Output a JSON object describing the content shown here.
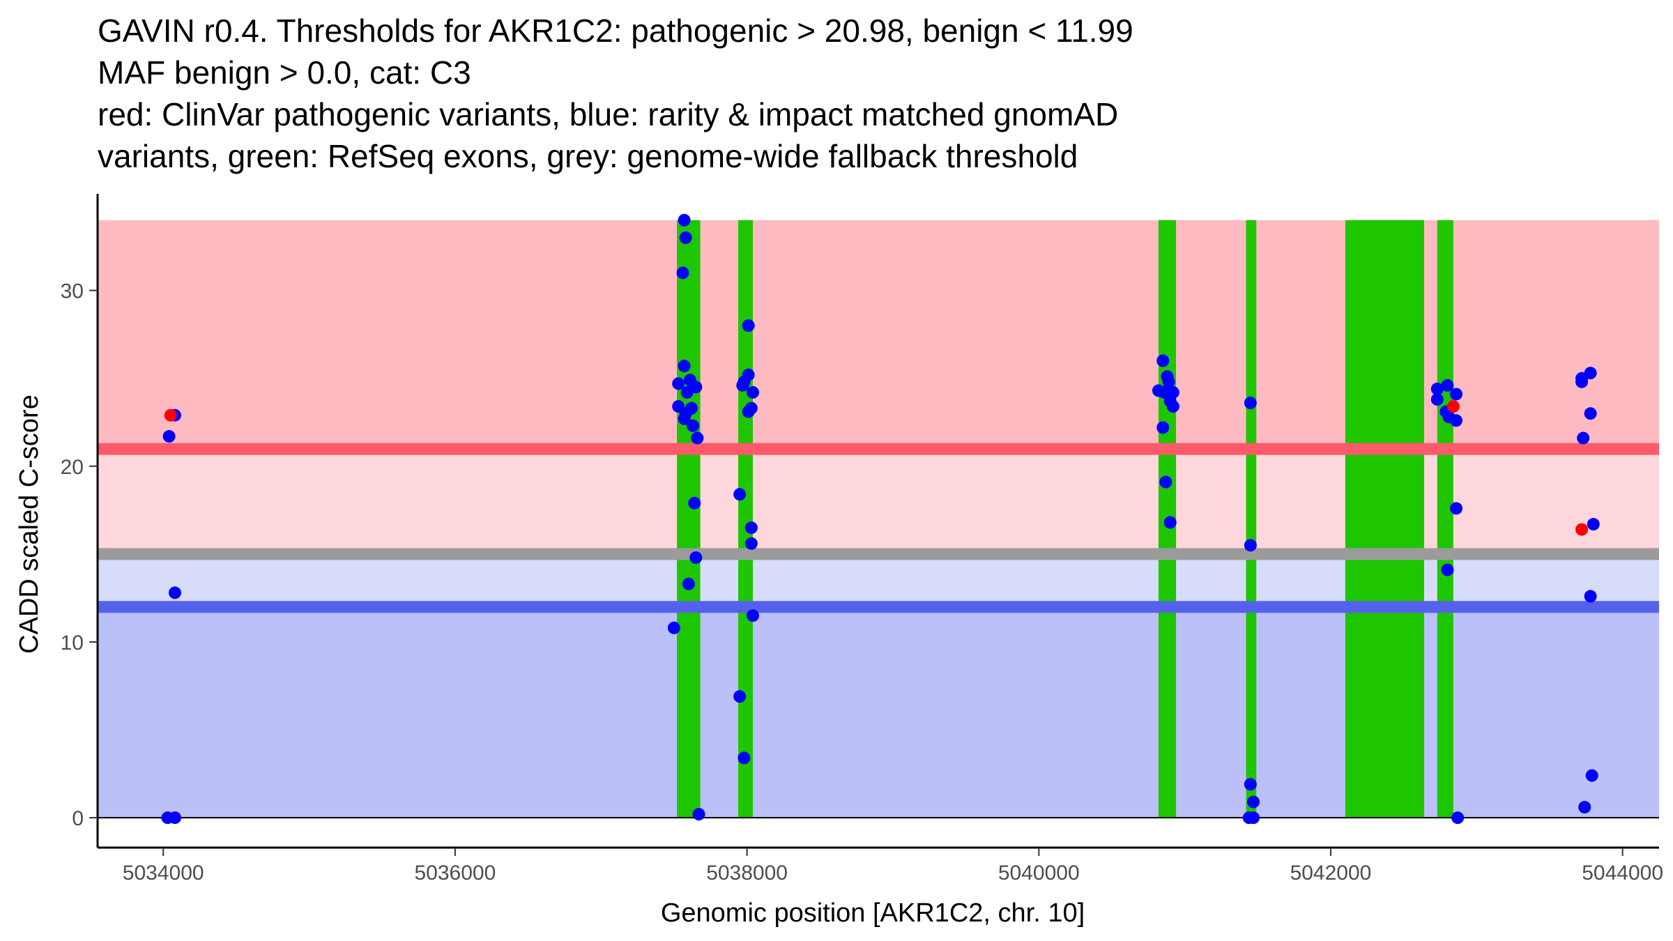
{
  "title_lines": [
    "GAVIN r0.4. Thresholds for AKR1C2: pathogenic > 20.98, benign < 11.99",
    "MAF benign > 0.0, cat: C3",
    "red: ClinVar pathogenic variants, blue: rarity & impact matched gnomAD",
    "variants, green: RefSeq exons, grey: genome-wide fallback threshold"
  ],
  "chart_data": {
    "type": "scatter",
    "title": "GAVIN r0.4. Thresholds for AKR1C2: pathogenic > 20.98, benign < 11.99 / MAF benign > 0.0, cat: C3",
    "xlabel": "Genomic position [AKR1C2, chr. 10]",
    "ylabel": "CADD scaled C-score",
    "xlim": [
      5033550,
      5044250
    ],
    "ylim": [
      -1.7,
      35.5
    ],
    "x_ticks": [
      5034000,
      5036000,
      5038000,
      5040000,
      5042000,
      5044000
    ],
    "x_tick_labels": [
      "5034000",
      "5036000",
      "5038000",
      "5040000",
      "5042000",
      "5044000"
    ],
    "y_ticks": [
      0,
      10,
      20,
      30
    ],
    "y_tick_labels": [
      "0",
      "10",
      "20",
      "30"
    ],
    "colors": {
      "pathogenic_zone": "#fdbbc1",
      "pathogenic_light_zone": "#fdd7db",
      "benign_light_zone": "#d7dcfb",
      "benign_zone": "#bbc0f8",
      "pathogenic_line": "#fe5a6a",
      "fallback_line": "#9b9b9b",
      "benign_line": "#5462eb",
      "exon": "#1ec600",
      "clinvar": "#ff0000",
      "gnomad": "#0000ff",
      "axis": "#000000"
    },
    "thresholds": {
      "pathogenic": 20.98,
      "benign": 11.99,
      "fallback": 15.0,
      "zone_top": 34.0
    },
    "exons": [
      {
        "start": 5037520,
        "end": 5037680
      },
      {
        "start": 5037940,
        "end": 5038040
      },
      {
        "start": 5040820,
        "end": 5040940
      },
      {
        "start": 5041420,
        "end": 5041490
      },
      {
        "start": 5042100,
        "end": 5042640
      },
      {
        "start": 5042730,
        "end": 5042840
      }
    ],
    "series": [
      {
        "name": "ClinVar pathogenic variants",
        "color": "red",
        "points": [
          [
            5034050,
            22.9
          ],
          [
            5042840,
            23.4
          ],
          [
            5043720,
            16.4
          ]
        ]
      },
      {
        "name": "gnomAD variants",
        "color": "blue",
        "points": [
          [
            5034080,
            22.9
          ],
          [
            5034040,
            21.7
          ],
          [
            5034080,
            12.8
          ],
          [
            5034030,
            0.0
          ],
          [
            5034080,
            0.0
          ],
          [
            5037570,
            34.0
          ],
          [
            5037580,
            33.0
          ],
          [
            5037560,
            31.0
          ],
          [
            5037570,
            25.7
          ],
          [
            5037530,
            24.7
          ],
          [
            5037610,
            24.9
          ],
          [
            5037650,
            24.5
          ],
          [
            5037590,
            24.2
          ],
          [
            5037530,
            23.4
          ],
          [
            5037620,
            23.3
          ],
          [
            5037580,
            23.0
          ],
          [
            5037570,
            22.7
          ],
          [
            5037630,
            22.3
          ],
          [
            5037660,
            21.6
          ],
          [
            5037640,
            17.9
          ],
          [
            5037650,
            14.8
          ],
          [
            5037600,
            13.3
          ],
          [
            5037500,
            10.8
          ],
          [
            5037670,
            0.2
          ],
          [
            5038010,
            28.0
          ],
          [
            5038010,
            25.2
          ],
          [
            5037980,
            24.8
          ],
          [
            5037970,
            24.6
          ],
          [
            5038040,
            24.2
          ],
          [
            5038030,
            23.3
          ],
          [
            5038010,
            23.1
          ],
          [
            5037950,
            18.4
          ],
          [
            5038030,
            16.5
          ],
          [
            5038030,
            15.6
          ],
          [
            5038040,
            11.5
          ],
          [
            5037950,
            6.9
          ],
          [
            5037980,
            3.4
          ],
          [
            5040850,
            26.0
          ],
          [
            5040880,
            25.1
          ],
          [
            5040890,
            24.8
          ],
          [
            5040820,
            24.3
          ],
          [
            5040860,
            24.2
          ],
          [
            5040920,
            24.2
          ],
          [
            5040900,
            23.7
          ],
          [
            5040920,
            23.4
          ],
          [
            5040850,
            22.2
          ],
          [
            5040870,
            19.1
          ],
          [
            5040900,
            16.8
          ],
          [
            5041450,
            23.6
          ],
          [
            5041450,
            15.5
          ],
          [
            5041450,
            1.9
          ],
          [
            5041470,
            0.9
          ],
          [
            5041440,
            0.0
          ],
          [
            5041470,
            0.0
          ],
          [
            5042730,
            24.4
          ],
          [
            5042800,
            24.6
          ],
          [
            5042730,
            23.8
          ],
          [
            5042860,
            24.1
          ],
          [
            5042790,
            23.1
          ],
          [
            5042810,
            22.8
          ],
          [
            5042860,
            22.6
          ],
          [
            5042860,
            17.6
          ],
          [
            5042800,
            14.1
          ],
          [
            5042870,
            0.0
          ],
          [
            5043720,
            25.0
          ],
          [
            5043780,
            25.3
          ],
          [
            5043720,
            24.8
          ],
          [
            5043780,
            23.0
          ],
          [
            5043730,
            21.6
          ],
          [
            5043800,
            16.7
          ],
          [
            5043780,
            12.6
          ],
          [
            5043790,
            2.4
          ],
          [
            5043740,
            0.6
          ]
        ]
      }
    ]
  }
}
